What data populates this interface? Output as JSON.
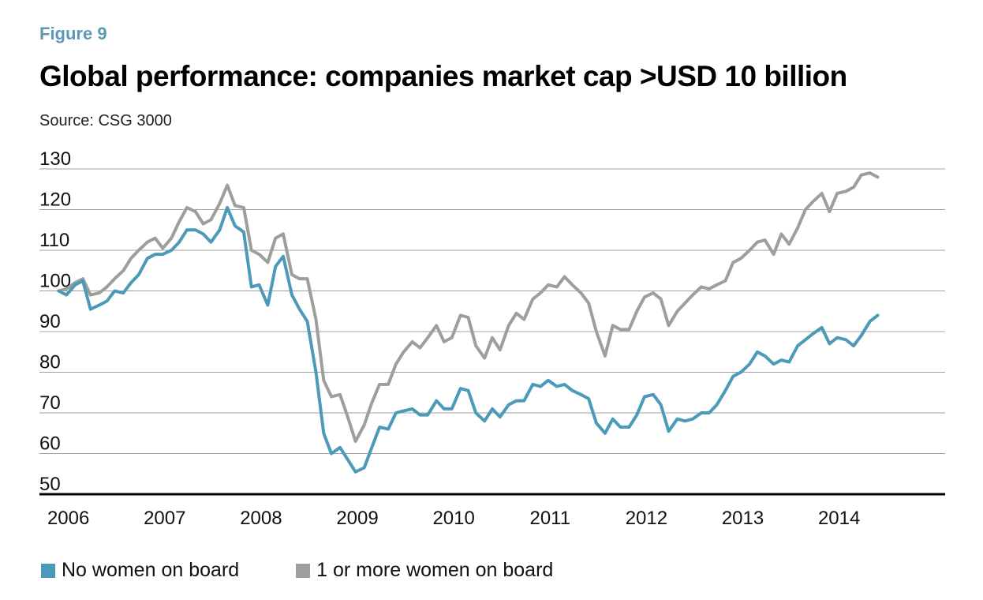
{
  "header": {
    "figure_label": "Figure 9",
    "title": "Global performance: companies market cap >USD 10 billion",
    "source": "Source: CSG 3000"
  },
  "colors": {
    "no_women": "#4b9ab9",
    "women": "#9c9f9a",
    "grid": "#a0a0a0",
    "axis": "#000000"
  },
  "chart_data": {
    "type": "line",
    "title": "Global performance: companies market cap >USD 10 billion",
    "xlabel": "",
    "ylabel": "",
    "ylim": [
      50,
      130
    ],
    "yticks": [
      50,
      60,
      70,
      80,
      90,
      100,
      110,
      120,
      130
    ],
    "xlim": [
      2005.8,
      2015.2
    ],
    "xticks": [
      "2006",
      "2007",
      "2008",
      "2009",
      "2010",
      "2011",
      "2012",
      "2013",
      "2014"
    ],
    "grid": true,
    "legend_position": "bottom-left",
    "series": [
      {
        "name": "No women on board",
        "color": "#4b9ab9",
        "x": [
          2006.0,
          2006.08,
          2006.17,
          2006.25,
          2006.33,
          2006.42,
          2006.5,
          2006.58,
          2006.67,
          2006.75,
          2006.83,
          2006.92,
          2007.0,
          2007.08,
          2007.17,
          2007.25,
          2007.33,
          2007.42,
          2007.5,
          2007.58,
          2007.67,
          2007.75,
          2007.83,
          2007.92,
          2008.0,
          2008.08,
          2008.17,
          2008.25,
          2008.33,
          2008.42,
          2008.5,
          2008.58,
          2008.67,
          2008.75,
          2008.83,
          2008.92,
          2009.0,
          2009.08,
          2009.17,
          2009.25,
          2009.33,
          2009.42,
          2009.5,
          2009.58,
          2009.67,
          2009.75,
          2009.83,
          2009.92,
          2010.0,
          2010.08,
          2010.17,
          2010.25,
          2010.33,
          2010.42,
          2010.5,
          2010.58,
          2010.67,
          2010.75,
          2010.83,
          2010.92,
          2011.0,
          2011.08,
          2011.17,
          2011.25,
          2011.33,
          2011.42,
          2011.5,
          2011.58,
          2011.67,
          2011.75,
          2011.83,
          2011.92,
          2012.0,
          2012.08,
          2012.17,
          2012.25,
          2012.33,
          2012.42,
          2012.5,
          2012.58,
          2012.67,
          2012.75,
          2012.83,
          2012.92,
          2013.0,
          2013.08,
          2013.17,
          2013.25,
          2013.33,
          2013.42,
          2013.5,
          2013.58,
          2013.67,
          2013.75,
          2013.83,
          2013.92,
          2014.0,
          2014.08,
          2014.17,
          2014.25,
          2014.33,
          2014.42,
          2014.5
        ],
        "values": [
          100,
          99,
          101.5,
          102.5,
          95.5,
          96.5,
          97.5,
          100,
          99.5,
          102,
          104,
          108,
          109,
          109,
          110,
          112,
          115,
          115,
          114,
          112,
          115,
          120.5,
          116,
          114.5,
          101,
          101.5,
          96.5,
          106,
          108.5,
          99,
          95.5,
          92.5,
          80,
          65,
          60,
          61.5,
          58.5,
          55.5,
          56.5,
          61.5,
          66.5,
          66,
          70,
          70.5,
          71,
          69.5,
          69.5,
          73,
          71,
          71,
          76,
          75.5,
          70,
          68,
          71,
          69,
          72,
          73,
          73,
          77,
          76.5,
          78,
          76.5,
          77,
          75.5,
          74.5,
          73.5,
          67.5,
          65,
          68.5,
          66.5,
          66.5,
          69.5,
          74,
          74.5,
          72,
          65.5,
          68.5,
          68,
          68.5,
          70,
          70,
          72,
          75.5,
          79,
          80,
          82,
          85,
          84,
          82,
          83,
          82.5,
          86.5,
          88,
          89.5,
          91,
          87,
          88.5,
          88,
          86.5,
          89,
          92.5,
          94
        ]
      },
      {
        "name": "1 or more women on board",
        "color": "#9c9f9a",
        "x": [
          2006.0,
          2006.08,
          2006.17,
          2006.25,
          2006.33,
          2006.42,
          2006.5,
          2006.58,
          2006.67,
          2006.75,
          2006.83,
          2006.92,
          2007.0,
          2007.08,
          2007.17,
          2007.25,
          2007.33,
          2007.42,
          2007.5,
          2007.58,
          2007.67,
          2007.75,
          2007.83,
          2007.92,
          2008.0,
          2008.08,
          2008.17,
          2008.25,
          2008.33,
          2008.42,
          2008.5,
          2008.58,
          2008.67,
          2008.75,
          2008.83,
          2008.92,
          2009.0,
          2009.08,
          2009.17,
          2009.25,
          2009.33,
          2009.42,
          2009.5,
          2009.58,
          2009.67,
          2009.75,
          2009.83,
          2009.92,
          2010.0,
          2010.08,
          2010.17,
          2010.25,
          2010.33,
          2010.42,
          2010.5,
          2010.58,
          2010.67,
          2010.75,
          2010.83,
          2010.92,
          2011.0,
          2011.08,
          2011.17,
          2011.25,
          2011.33,
          2011.42,
          2011.5,
          2011.58,
          2011.67,
          2011.75,
          2011.83,
          2011.92,
          2012.0,
          2012.08,
          2012.17,
          2012.25,
          2012.33,
          2012.42,
          2012.5,
          2012.58,
          2012.67,
          2012.75,
          2012.83,
          2012.92,
          2013.0,
          2013.08,
          2013.17,
          2013.25,
          2013.33,
          2013.42,
          2013.5,
          2013.58,
          2013.67,
          2013.75,
          2013.83,
          2013.92,
          2014.0,
          2014.08,
          2014.17,
          2014.25,
          2014.33,
          2014.42,
          2014.5
        ],
        "values": [
          100,
          100.5,
          102,
          103,
          99,
          99.5,
          101,
          103,
          105,
          108,
          110,
          112,
          113,
          110.5,
          113,
          117,
          120.5,
          119.5,
          116.5,
          117.5,
          121.5,
          126,
          121,
          120.5,
          110,
          109,
          107,
          113,
          114,
          104,
          103,
          103,
          93,
          78,
          74,
          74.5,
          69,
          63,
          67,
          72.5,
          77,
          77,
          82,
          85,
          87.5,
          86,
          88.5,
          91.5,
          87.5,
          88.5,
          94,
          93.5,
          86.5,
          83.5,
          88.5,
          85.5,
          91.5,
          94.5,
          93,
          98,
          99.5,
          101.5,
          101,
          103.5,
          101.5,
          99.5,
          97,
          90,
          84,
          91.5,
          90.5,
          90.5,
          95,
          98.5,
          99.5,
          98,
          91.5,
          95,
          97,
          99,
          101,
          100.5,
          101.5,
          102.5,
          107,
          108,
          110,
          112,
          112.5,
          109,
          114,
          111.5,
          115.5,
          120,
          122,
          124,
          119.5,
          124,
          124.5,
          125.5,
          128.5,
          129,
          128
        ]
      }
    ]
  }
}
